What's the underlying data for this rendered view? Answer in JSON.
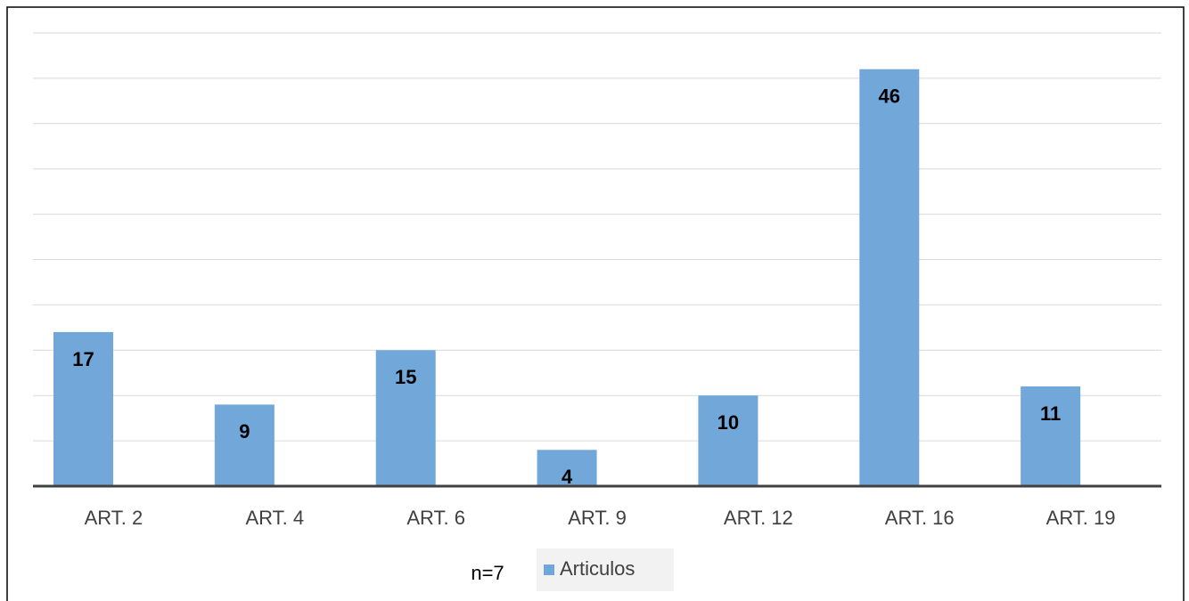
{
  "chart_data": {
    "type": "bar",
    "categories": [
      "ART. 2",
      "ART. 4",
      "ART. 6",
      "ART. 9",
      "ART. 12",
      "ART. 16",
      "ART. 19"
    ],
    "series": [
      {
        "name": "Articulos",
        "color": "#72a7da",
        "values": [
          17,
          9,
          15,
          4,
          10,
          46,
          11
        ]
      }
    ],
    "ylim": [
      0,
      50
    ],
    "yticks": [
      0,
      5,
      10,
      15,
      20,
      25,
      30,
      35,
      40,
      45,
      50
    ],
    "grid": true,
    "annotation": "n=7"
  }
}
